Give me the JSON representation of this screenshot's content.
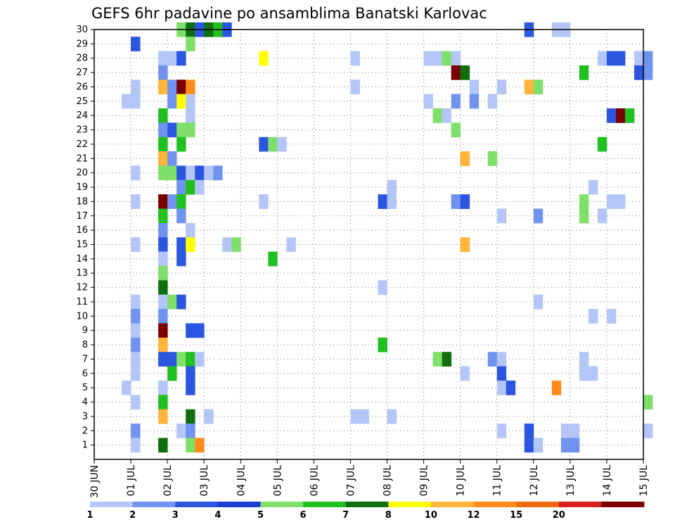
{
  "chart_data": {
    "type": "heatmap",
    "title": "GEFS 6hr padavine po ansamblima Banatski Karlovac",
    "xlabel": "",
    "ylabel": "",
    "x_tick_labels": [
      "30 JUN",
      "01 JUL",
      "02 JUL",
      "03 JUL",
      "04 JUL",
      "05 JUL",
      "06 JUL",
      "07 JUL",
      "08 JUL",
      "09 JUL",
      "10 JUL",
      "11 JUL",
      "12 JUL",
      "13 JUL",
      "14 JUL",
      "15 JUL"
    ],
    "x_range_days": [
      0,
      15
    ],
    "x_step_hours": 6,
    "y_tick_labels": [
      "1",
      "2",
      "3",
      "4",
      "5",
      "6",
      "7",
      "8",
      "9",
      "10",
      "11",
      "12",
      "13",
      "14",
      "15",
      "16",
      "17",
      "18",
      "19",
      "20",
      "21",
      "22",
      "23",
      "24",
      "25",
      "26",
      "27",
      "28",
      "29",
      "30"
    ],
    "y_range": [
      0,
      30
    ],
    "grid": true,
    "legend": {
      "placement": "bottom",
      "colors": [
        "#b3c6f7",
        "#6f93ee",
        "#2b56e0",
        "#1c3ed6",
        "#7ee06a",
        "#20c020",
        "#0f6f0f",
        "#ffff00",
        "#ffb43a",
        "#ff8c1a",
        "#f26a10",
        "#d62020",
        "#7a0000"
      ],
      "tick_labels": [
        "1",
        "2",
        "3",
        "4",
        "5",
        "6",
        "7",
        "8",
        "10",
        "12",
        "15",
        "20"
      ],
      "bounds": [
        1,
        2,
        3,
        4,
        5,
        6,
        7,
        8,
        10,
        12,
        15,
        20
      ]
    },
    "cells": [
      [
        30,
        2.25,
        5
      ],
      [
        30,
        2.5,
        7
      ],
      [
        30,
        2.75,
        3
      ],
      [
        30,
        3.0,
        7
      ],
      [
        30,
        3.25,
        6
      ],
      [
        30,
        3.5,
        3
      ],
      [
        30,
        11.75,
        3
      ],
      [
        30,
        12.5,
        1
      ],
      [
        30,
        12.75,
        1
      ],
      [
        29,
        1.0,
        3
      ],
      [
        29,
        2.5,
        5
      ],
      [
        28,
        1.75,
        1
      ],
      [
        28,
        2.0,
        1
      ],
      [
        28,
        2.25,
        3
      ],
      [
        28,
        4.5,
        8
      ],
      [
        28,
        7.0,
        1
      ],
      [
        28,
        9.0,
        1
      ],
      [
        28,
        9.25,
        1
      ],
      [
        28,
        9.5,
        5
      ],
      [
        28,
        9.75,
        1
      ],
      [
        28,
        13.75,
        1
      ],
      [
        28,
        14.0,
        3
      ],
      [
        28,
        14.25,
        3
      ],
      [
        28,
        14.75,
        1
      ],
      [
        28,
        15.0,
        2
      ],
      [
        27,
        1.75,
        2
      ],
      [
        27,
        9.75,
        13
      ],
      [
        27,
        10.0,
        7
      ],
      [
        27,
        13.25,
        6
      ],
      [
        27,
        14.75,
        3
      ],
      [
        27,
        15.0,
        2
      ],
      [
        26,
        1.0,
        1
      ],
      [
        26,
        1.75,
        9
      ],
      [
        26,
        2.0,
        2
      ],
      [
        26,
        2.25,
        13
      ],
      [
        26,
        2.5,
        10
      ],
      [
        26,
        7.0,
        1
      ],
      [
        26,
        10.25,
        1
      ],
      [
        26,
        11.0,
        1
      ],
      [
        26,
        11.75,
        9
      ],
      [
        26,
        12.0,
        5
      ],
      [
        25,
        0.75,
        1
      ],
      [
        25,
        1.0,
        1
      ],
      [
        25,
        2.0,
        2
      ],
      [
        25,
        2.25,
        8
      ],
      [
        25,
        2.5,
        1
      ],
      [
        25,
        9.0,
        1
      ],
      [
        25,
        9.75,
        2
      ],
      [
        25,
        10.25,
        2
      ],
      [
        25,
        10.75,
        1
      ],
      [
        24,
        1.75,
        6
      ],
      [
        24,
        2.5,
        1
      ],
      [
        24,
        9.25,
        5
      ],
      [
        24,
        9.5,
        1
      ],
      [
        24,
        14.0,
        3
      ],
      [
        24,
        14.25,
        13
      ],
      [
        24,
        14.5,
        6
      ],
      [
        23,
        1.75,
        2
      ],
      [
        23,
        2.0,
        3
      ],
      [
        23,
        2.25,
        5
      ],
      [
        23,
        2.5,
        5
      ],
      [
        23,
        9.75,
        5
      ],
      [
        22,
        1.75,
        6
      ],
      [
        22,
        2.25,
        6
      ],
      [
        22,
        4.5,
        3
      ],
      [
        22,
        4.75,
        5
      ],
      [
        22,
        5.0,
        1
      ],
      [
        22,
        13.75,
        6
      ],
      [
        21,
        1.75,
        9
      ],
      [
        21,
        2.0,
        2
      ],
      [
        21,
        10.0,
        9
      ],
      [
        21,
        10.75,
        5
      ],
      [
        20,
        1.0,
        1
      ],
      [
        20,
        1.75,
        5
      ],
      [
        20,
        2.0,
        5
      ],
      [
        20,
        2.25,
        3
      ],
      [
        20,
        2.5,
        1
      ],
      [
        20,
        2.75,
        3
      ],
      [
        20,
        3.0,
        1
      ],
      [
        20,
        3.25,
        2
      ],
      [
        19,
        2.25,
        2
      ],
      [
        19,
        2.5,
        6
      ],
      [
        19,
        2.75,
        1
      ],
      [
        19,
        8.0,
        1
      ],
      [
        19,
        13.5,
        1
      ],
      [
        18,
        1.0,
        1
      ],
      [
        18,
        1.75,
        13
      ],
      [
        18,
        2.0,
        2
      ],
      [
        18,
        2.25,
        6
      ],
      [
        18,
        4.5,
        1
      ],
      [
        18,
        7.75,
        3
      ],
      [
        18,
        8.0,
        1
      ],
      [
        18,
        9.75,
        2
      ],
      [
        18,
        10.0,
        3
      ],
      [
        18,
        13.25,
        5
      ],
      [
        18,
        14.0,
        1
      ],
      [
        18,
        14.25,
        1
      ],
      [
        17,
        1.75,
        6
      ],
      [
        17,
        2.25,
        2
      ],
      [
        17,
        11.0,
        1
      ],
      [
        17,
        12.0,
        2
      ],
      [
        17,
        13.25,
        5
      ],
      [
        17,
        13.75,
        1
      ],
      [
        16,
        1.75,
        2
      ],
      [
        16,
        2.5,
        1
      ],
      [
        15,
        1.0,
        1
      ],
      [
        15,
        1.75,
        3
      ],
      [
        15,
        2.25,
        3
      ],
      [
        15,
        2.5,
        8
      ],
      [
        15,
        3.5,
        1
      ],
      [
        15,
        3.75,
        5
      ],
      [
        15,
        5.25,
        1
      ],
      [
        15,
        10.0,
        9
      ],
      [
        14,
        1.75,
        1
      ],
      [
        14,
        2.25,
        3
      ],
      [
        14,
        4.75,
        6
      ],
      [
        13,
        1.75,
        5
      ],
      [
        12,
        1.75,
        7
      ],
      [
        12,
        7.75,
        1
      ],
      [
        11,
        1.0,
        1
      ],
      [
        11,
        1.75,
        1
      ],
      [
        11,
        2.0,
        5
      ],
      [
        11,
        2.25,
        3
      ],
      [
        11,
        12.0,
        1
      ],
      [
        10,
        1.0,
        2
      ],
      [
        10,
        1.75,
        2
      ],
      [
        10,
        13.5,
        1
      ],
      [
        10,
        14.0,
        1
      ],
      [
        9,
        1.0,
        1
      ],
      [
        9,
        1.75,
        13
      ],
      [
        9,
        2.5,
        3
      ],
      [
        9,
        2.75,
        3
      ],
      [
        8,
        1.0,
        2
      ],
      [
        8,
        1.75,
        9
      ],
      [
        8,
        7.75,
        6
      ],
      [
        7,
        1.0,
        1
      ],
      [
        7,
        1.75,
        3
      ],
      [
        7,
        2.0,
        3
      ],
      [
        7,
        2.25,
        5
      ],
      [
        7,
        2.5,
        6
      ],
      [
        7,
        2.75,
        1
      ],
      [
        7,
        9.25,
        5
      ],
      [
        7,
        9.5,
        7
      ],
      [
        7,
        10.75,
        2
      ],
      [
        7,
        11.0,
        1
      ],
      [
        7,
        13.25,
        1
      ],
      [
        6,
        1.0,
        1
      ],
      [
        6,
        2.0,
        6
      ],
      [
        6,
        2.5,
        3
      ],
      [
        6,
        10.0,
        1
      ],
      [
        6,
        11.0,
        3
      ],
      [
        6,
        13.25,
        1
      ],
      [
        6,
        13.5,
        1
      ],
      [
        5,
        0.75,
        1
      ],
      [
        5,
        1.75,
        1
      ],
      [
        5,
        2.5,
        3
      ],
      [
        5,
        11.0,
        1
      ],
      [
        5,
        11.25,
        3
      ],
      [
        5,
        12.5,
        10
      ],
      [
        4,
        1.0,
        1
      ],
      [
        4,
        1.75,
        6
      ],
      [
        4,
        15.0,
        5
      ],
      [
        3,
        1.75,
        9
      ],
      [
        3,
        2.5,
        7
      ],
      [
        3,
        3.0,
        1
      ],
      [
        3,
        7.0,
        1
      ],
      [
        3,
        7.25,
        1
      ],
      [
        3,
        8.0,
        1
      ],
      [
        2,
        1.0,
        2
      ],
      [
        2,
        2.25,
        1
      ],
      [
        2,
        2.5,
        2
      ],
      [
        2,
        11.0,
        1
      ],
      [
        2,
        11.75,
        3
      ],
      [
        2,
        12.75,
        1
      ],
      [
        2,
        13.0,
        1
      ],
      [
        2,
        15.0,
        1
      ],
      [
        1,
        1.0,
        1
      ],
      [
        1,
        1.75,
        7
      ],
      [
        1,
        2.5,
        5
      ],
      [
        1,
        2.75,
        10
      ],
      [
        1,
        11.75,
        3
      ],
      [
        1,
        12.0,
        1
      ],
      [
        1,
        12.75,
        2
      ],
      [
        1,
        13.0,
        2
      ]
    ]
  }
}
